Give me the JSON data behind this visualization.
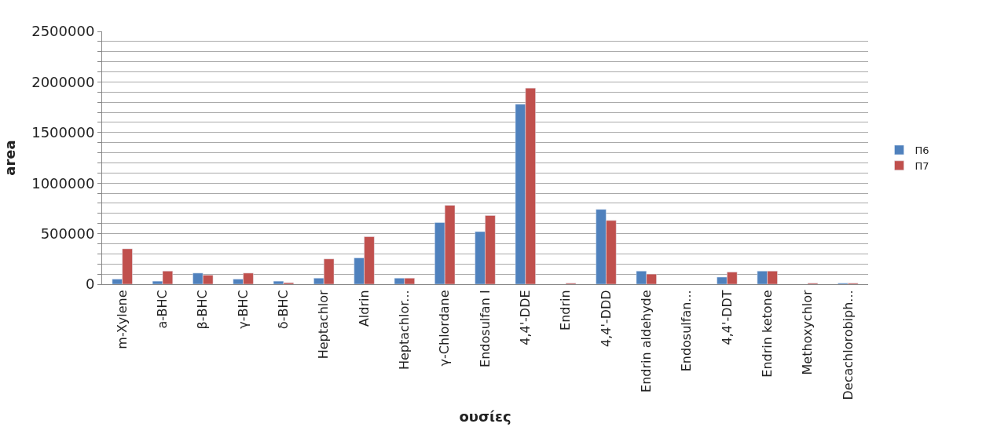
{
  "chart_data": {
    "type": "bar",
    "xlabel": "ουσίες",
    "ylabel": "area",
    "categories": [
      "m-Xylene",
      "a-BHC",
      "β-BHC",
      "γ-BHC",
      "δ-BHC",
      "Heptachlor",
      "Aldrin",
      "Heptachlor...",
      "γ-Chlordane",
      "Endosulfan I",
      "4,4'-DDE",
      "Endrin",
      "4,4'-DDD",
      "Endrin aldehyde",
      "Endosulfan...",
      "4,4'-DDT",
      "Endrin ketone",
      "Methoxychlor",
      "Decachlorobiph..."
    ],
    "series": [
      {
        "name": "Π6",
        "color": "#4f81bd",
        "values": [
          50000,
          30000,
          110000,
          50000,
          30000,
          60000,
          260000,
          60000,
          610000,
          520000,
          1780000,
          null,
          740000,
          130000,
          null,
          70000,
          130000,
          null,
          10000
        ]
      },
      {
        "name": "Π7",
        "color": "#c0504d",
        "values": [
          350000,
          130000,
          90000,
          110000,
          15000,
          250000,
          470000,
          60000,
          780000,
          680000,
          1940000,
          10000,
          630000,
          100000,
          null,
          120000,
          130000,
          10000,
          10000
        ]
      }
    ],
    "ylim": [
      0,
      2500000
    ],
    "yticks": [
      0,
      {
        "value": 100000,
        "label": null
      },
      {
        "value": 200000,
        "label": null
      },
      {
        "value": 300000,
        "label": null
      },
      {
        "value": 400000,
        "label": null
      },
      500000,
      {
        "value": 600000,
        "label": null
      },
      {
        "value": 700000,
        "label": null
      },
      {
        "value": 800000,
        "label": null
      },
      {
        "value": 900000,
        "label": null
      },
      1000000,
      {
        "value": 1100000,
        "label": null
      },
      {
        "value": 1200000,
        "label": null
      },
      {
        "value": 1300000,
        "label": null
      },
      {
        "value": 1400000,
        "label": null
      },
      1500000,
      {
        "value": 1600000,
        "label": null
      },
      {
        "value": 1700000,
        "label": null
      },
      {
        "value": 1800000,
        "label": null
      },
      {
        "value": 1900000,
        "label": null
      },
      2000000,
      {
        "value": 2100000,
        "label": null
      },
      {
        "value": 2200000,
        "label": null
      },
      {
        "value": 2300000,
        "label": null
      },
      {
        "value": 2400000,
        "label": null
      },
      2500000
    ],
    "grid": "y",
    "legend": "right"
  }
}
